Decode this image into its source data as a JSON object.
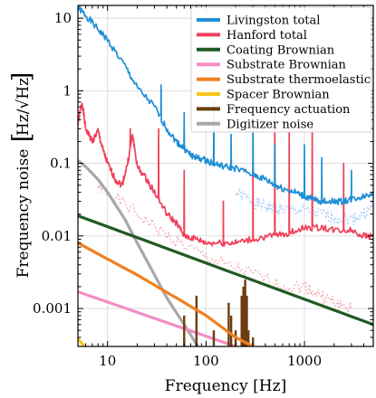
{
  "chart_data": {
    "type": "line",
    "title": "",
    "xlabel": "Frequency [Hz]",
    "ylabel": "Frequency noise",
    "ylabel_unit": "Hz/√Hz",
    "xscale": "log",
    "yscale": "log",
    "xlim": [
      5,
      5000
    ],
    "ylim": [
      0.0003,
      15
    ],
    "grid": true,
    "legend_position": "top-right",
    "x_ticks": [
      {
        "value": 10,
        "label": "10"
      },
      {
        "value": 100,
        "label": "100"
      },
      {
        "value": 1000,
        "label": "1000"
      }
    ],
    "y_ticks": [
      {
        "value": 10,
        "label": "10"
      },
      {
        "value": 1,
        "label": "1"
      },
      {
        "value": 0.1,
        "label": "0.1"
      },
      {
        "value": 0.01,
        "label": "0.01"
      },
      {
        "value": 0.001,
        "label": "0.001"
      }
    ],
    "series": [
      {
        "name": "Livingston total",
        "color": "#1f8fd6",
        "style": "line",
        "x": [
          5,
          6,
          8,
          10,
          15,
          20,
          30,
          40,
          50,
          60,
          70,
          80,
          100,
          120,
          150,
          200,
          300,
          400,
          500,
          600,
          800,
          1000,
          1200,
          1500,
          2000,
          2500,
          3000,
          4000,
          5000
        ],
        "y": [
          14,
          11,
          7,
          5,
          2.2,
          1.1,
          0.6,
          0.3,
          0.2,
          0.16,
          0.13,
          0.12,
          0.11,
          0.1,
          0.09,
          0.085,
          0.07,
          0.06,
          0.05,
          0.045,
          0.04,
          0.035,
          0.032,
          0.03,
          0.03,
          0.03,
          0.032,
          0.035,
          0.04
        ],
        "peaks": [
          {
            "x": 35,
            "y": 1.2
          },
          {
            "x": 60,
            "y": 0.5
          },
          {
            "x": 120,
            "y": 0.7
          },
          {
            "x": 180,
            "y": 0.25
          },
          {
            "x": 300,
            "y": 0.5
          },
          {
            "x": 500,
            "y": 0.18
          },
          {
            "x": 1000,
            "y": 0.18
          },
          {
            "x": 1500,
            "y": 0.12
          },
          {
            "x": 3000,
            "y": 0.08
          }
        ]
      },
      {
        "name": "Hanford total",
        "color": "#f0405a",
        "style": "line",
        "x": [
          5,
          5.5,
          6,
          7,
          8,
          9,
          10,
          12,
          14,
          16,
          18,
          20,
          25,
          30,
          40,
          50,
          60,
          80,
          100,
          150,
          200,
          300,
          500,
          700,
          1000,
          1500,
          2000,
          3000,
          4000,
          5000
        ],
        "y": [
          0.35,
          0.7,
          0.3,
          0.2,
          0.28,
          0.15,
          0.1,
          0.06,
          0.05,
          0.1,
          0.25,
          0.09,
          0.06,
          0.04,
          0.02,
          0.015,
          0.01,
          0.009,
          0.008,
          0.008,
          0.008,
          0.009,
          0.01,
          0.011,
          0.013,
          0.013,
          0.012,
          0.012,
          0.01,
          0.01
        ],
        "peaks": [
          {
            "x": 17,
            "y": 0.3
          },
          {
            "x": 33,
            "y": 0.3
          },
          {
            "x": 60,
            "y": 0.08
          },
          {
            "x": 150,
            "y": 0.03
          },
          {
            "x": 300,
            "y": 0.1
          },
          {
            "x": 500,
            "y": 0.5
          },
          {
            "x": 700,
            "y": 0.3
          },
          {
            "x": 1200,
            "y": 0.4
          },
          {
            "x": 2500,
            "y": 0.1
          }
        ]
      },
      {
        "name": "Coating Brownian",
        "color": "#1f5a22",
        "style": "line",
        "x": [
          5,
          5000
        ],
        "y": [
          0.019,
          0.0006
        ]
      },
      {
        "name": "Substrate Brownian",
        "color": "#f48dc4",
        "style": "line",
        "x": [
          5,
          200
        ],
        "y": [
          0.0017,
          0.0003
        ]
      },
      {
        "name": "Substrate thermoelastic",
        "color": "#f08020",
        "style": "line",
        "x": [
          5,
          10,
          20,
          50,
          100,
          200,
          300
        ],
        "y": [
          0.008,
          0.0048,
          0.0029,
          0.0014,
          0.0008,
          0.0004,
          0.0003
        ]
      },
      {
        "name": "Spacer Brownian",
        "color": "#f5c518",
        "style": "line",
        "x": [
          5,
          6
        ],
        "y": [
          0.00038,
          0.00029
        ]
      },
      {
        "name": "Frequency actuation",
        "color": "#6b3d0f",
        "style": "spikes",
        "x": [
          60,
          80,
          120,
          170,
          180,
          200,
          230,
          240,
          250,
          260,
          270,
          300
        ],
        "y": [
          0.0008,
          0.0015,
          0.0005,
          0.0012,
          0.0008,
          0.0005,
          0.0015,
          0.002,
          0.0025,
          0.0015,
          0.0005,
          0.0004
        ]
      },
      {
        "name": "Digitizer noise",
        "color": "#a8a8a8",
        "style": "line",
        "x": [
          5,
          6,
          8,
          10,
          15,
          20,
          30,
          40,
          60,
          100
        ],
        "y": [
          0.11,
          0.09,
          0.06,
          0.04,
          0.017,
          0.008,
          0.0029,
          0.0014,
          0.0006,
          0.0002
        ]
      }
    ],
    "secondary_traces": [
      {
        "name": "Livingston total (light)",
        "color": "#a9cdf3",
        "x": [
          200,
          300,
          400,
          500,
          700,
          1000,
          1500,
          2000,
          3000,
          4000,
          5000
        ],
        "y": [
          0.04,
          0.03,
          0.025,
          0.024,
          0.023,
          0.022,
          0.02,
          0.018,
          0.017,
          0.02,
          0.025
        ]
      },
      {
        "name": "Hanford total (light)",
        "color": "#f0a6b2",
        "x": [
          8,
          10,
          20,
          40,
          80,
          150,
          300,
          600,
          1000,
          1500,
          2000,
          3000
        ],
        "y": [
          0.05,
          0.04,
          0.02,
          0.01,
          0.006,
          0.004,
          0.003,
          0.002,
          0.002,
          0.0015,
          0.0012,
          0.001
        ]
      }
    ]
  }
}
